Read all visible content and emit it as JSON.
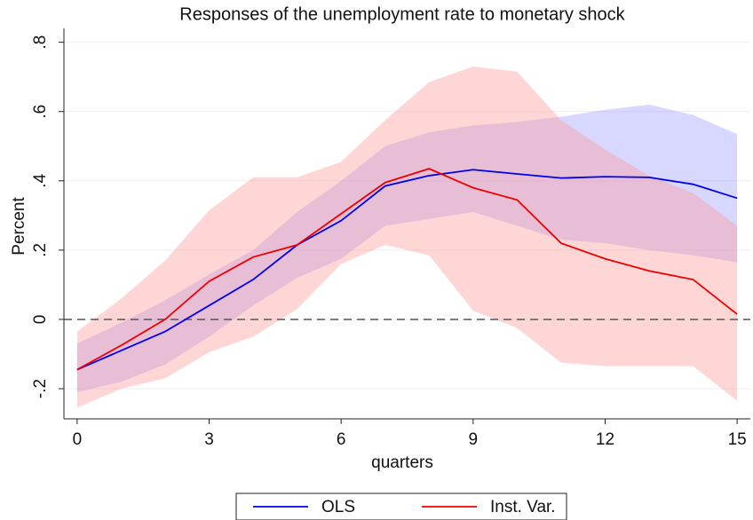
{
  "chart_data": {
    "type": "line",
    "title": "Responses of the unemployment rate to monetary shock",
    "x_label": "quarters",
    "y_label": "Percent",
    "x": [
      0,
      1,
      2,
      3,
      4,
      5,
      6,
      7,
      8,
      9,
      10,
      11,
      12,
      13,
      14,
      15
    ],
    "xlim": [
      -0.3,
      15.3
    ],
    "xticks": [
      0,
      3,
      6,
      9,
      12,
      15
    ],
    "ylim": [
      -0.287,
      0.84
    ],
    "yticks": [
      {
        "value": -0.2,
        "label": "-.2"
      },
      0,
      {
        "value": 0.2,
        "label": ".2"
      },
      {
        "value": 0.4,
        "label": ".4"
      },
      {
        "value": 0.6,
        "label": ".6"
      },
      {
        "value": 0.8,
        "label": ".8"
      }
    ],
    "grid": true,
    "reference_line": 0,
    "reference_color": "#555555",
    "legend_position": "bottom",
    "series": [
      {
        "name": "OLS",
        "color": "#0000ee",
        "band_color": "#9b9bff",
        "values": [
          -0.145,
          -0.09,
          -0.035,
          0.04,
          0.115,
          0.215,
          0.285,
          0.385,
          0.415,
          0.432,
          0.42,
          0.408,
          0.412,
          0.41,
          0.39,
          0.35
        ],
        "upper": [
          -0.07,
          -0.01,
          0.055,
          0.13,
          0.2,
          0.31,
          0.4,
          0.5,
          0.54,
          0.56,
          0.57,
          0.585,
          0.605,
          0.62,
          0.59,
          0.535
        ],
        "lower": [
          -0.21,
          -0.18,
          -0.13,
          -0.05,
          0.04,
          0.12,
          0.175,
          0.27,
          0.29,
          0.31,
          0.27,
          0.23,
          0.22,
          0.2,
          0.185,
          0.165
        ]
      },
      {
        "name": "Inst. Var.",
        "color": "#ee0000",
        "band_color": "#ff9999",
        "values": [
          -0.145,
          -0.075,
          0.0,
          0.11,
          0.18,
          0.215,
          0.305,
          0.395,
          0.435,
          0.38,
          0.345,
          0.22,
          0.175,
          0.14,
          0.115,
          0.015
        ],
        "upper": [
          -0.035,
          0.06,
          0.17,
          0.315,
          0.41,
          0.41,
          0.455,
          0.575,
          0.685,
          0.73,
          0.715,
          0.575,
          0.49,
          0.415,
          0.365,
          0.27
        ],
        "lower": [
          -0.255,
          -0.2,
          -0.17,
          -0.095,
          -0.05,
          0.03,
          0.16,
          0.215,
          0.185,
          0.025,
          -0.025,
          -0.125,
          -0.135,
          -0.135,
          -0.135,
          -0.235
        ]
      }
    ]
  }
}
